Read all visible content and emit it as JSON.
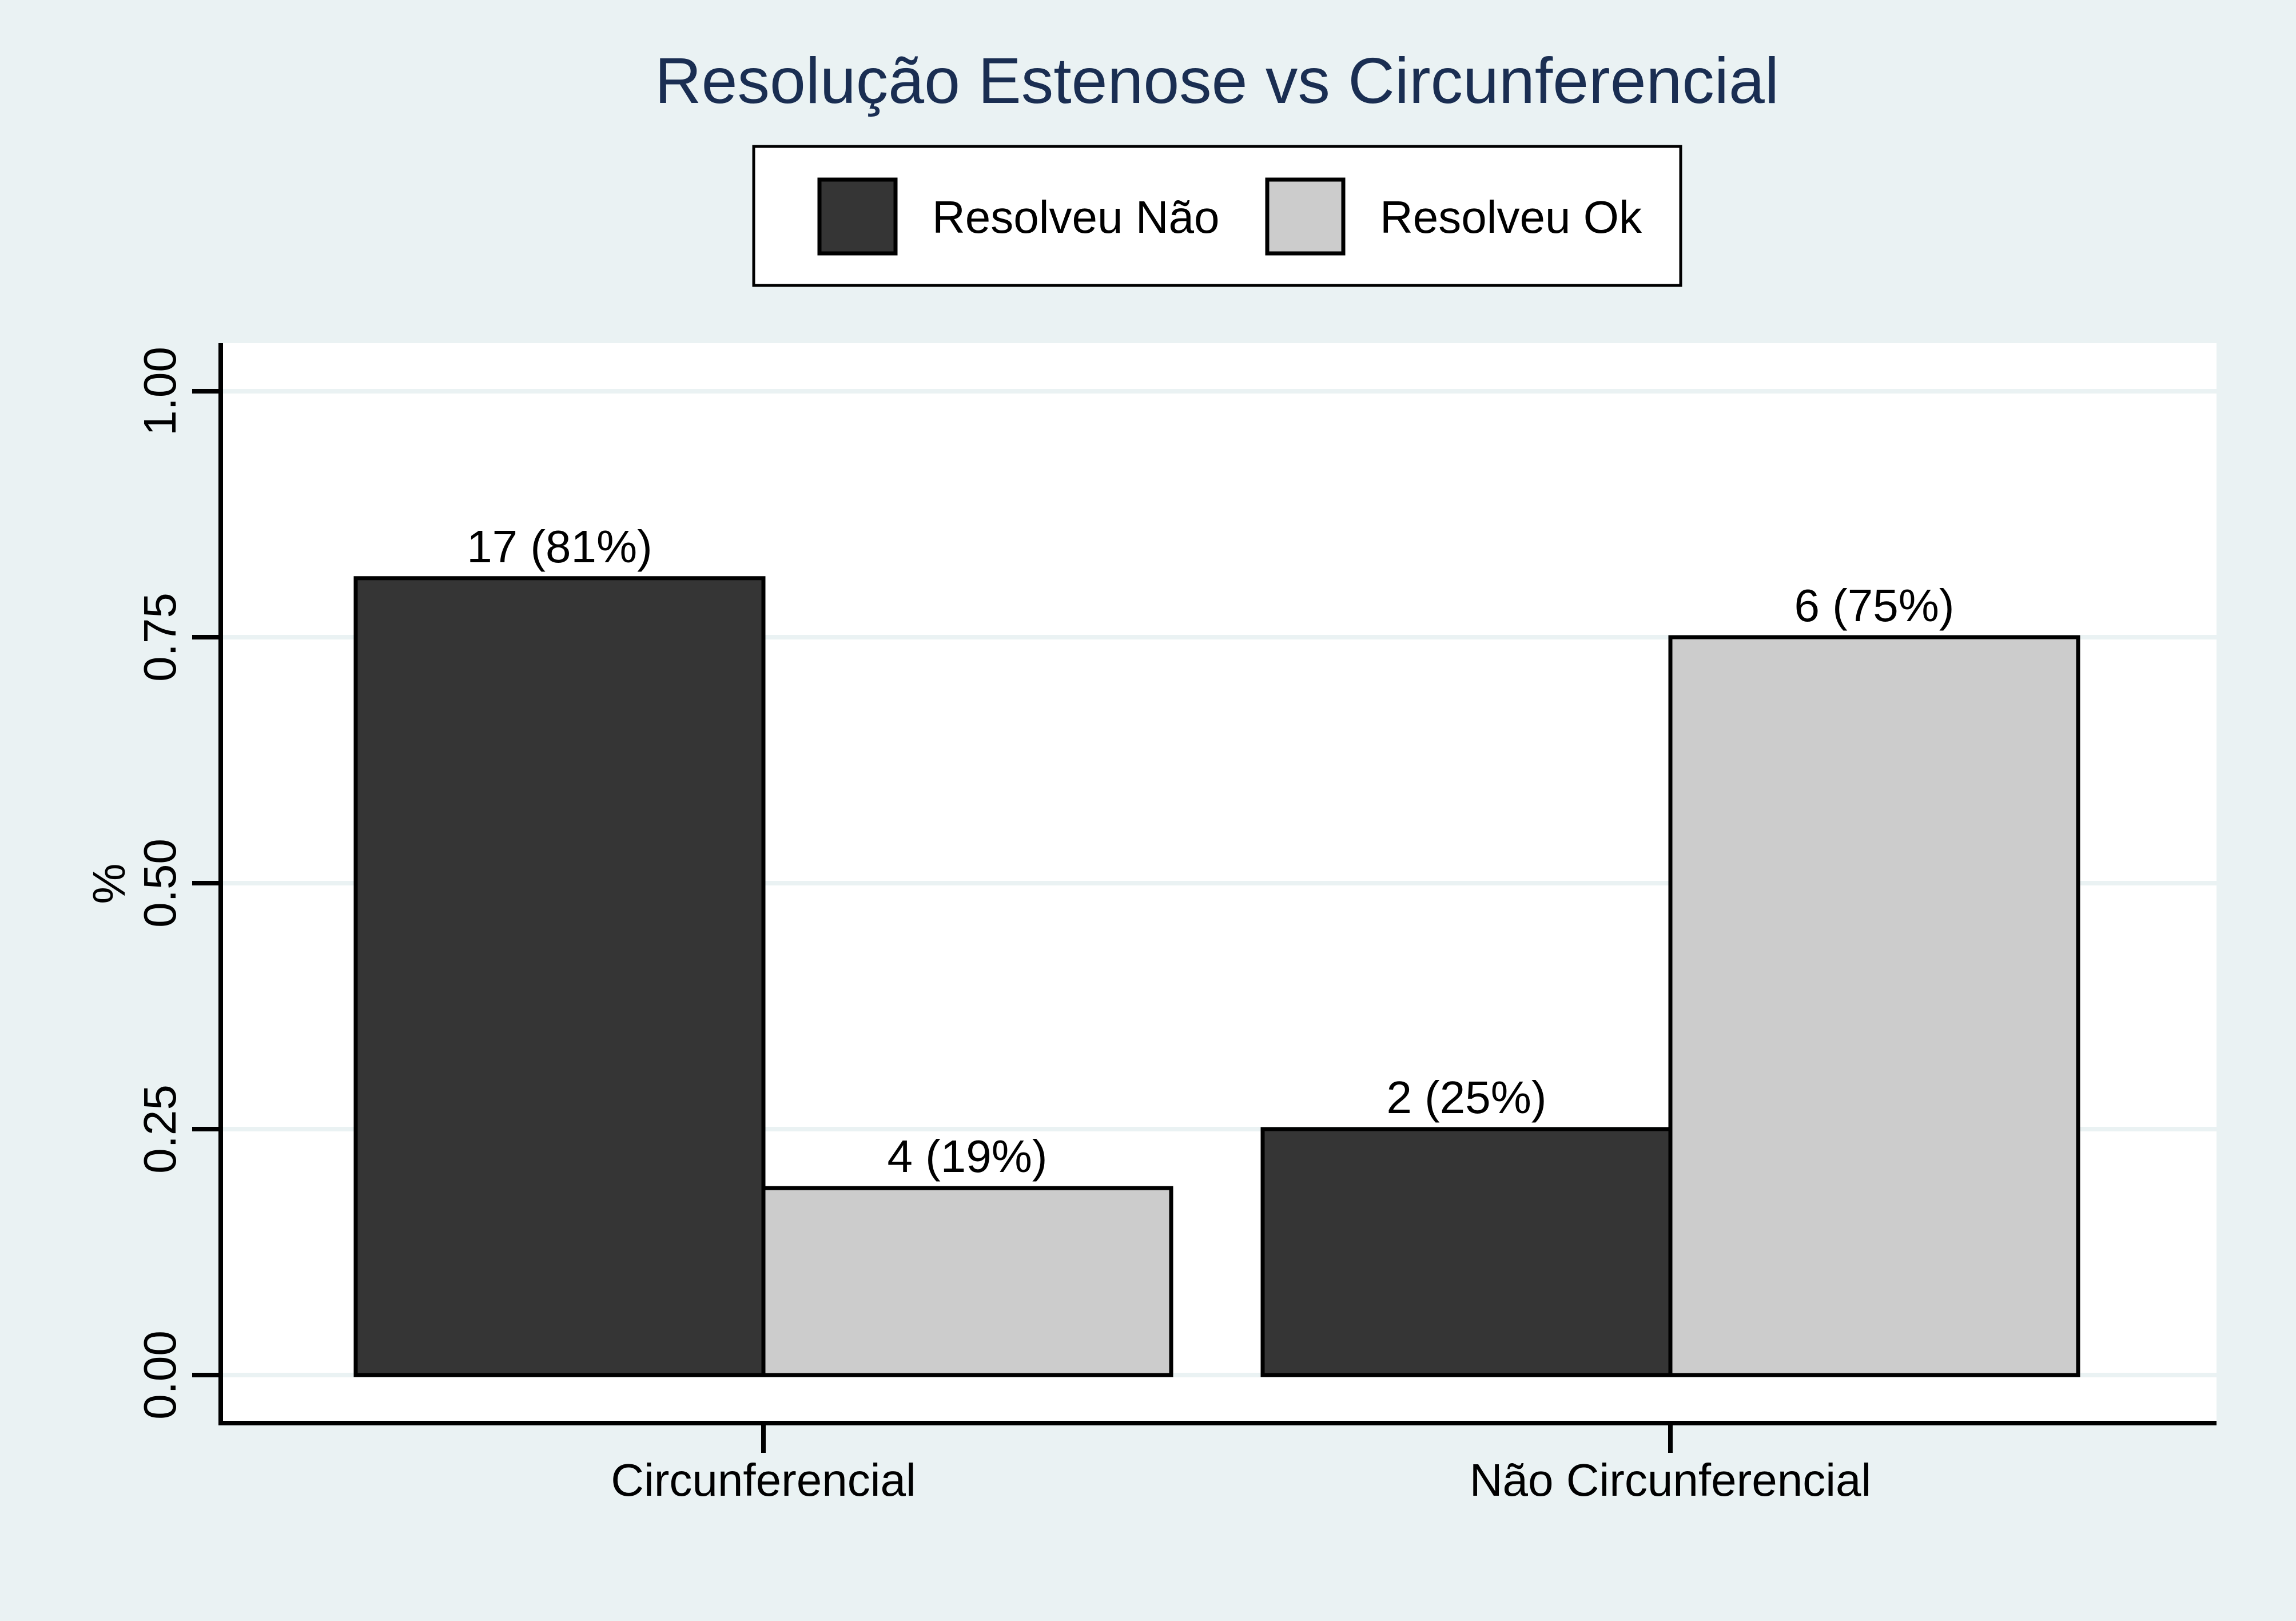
{
  "chart_data": {
    "type": "bar",
    "title": "Resolução Estenose vs Circunferencial",
    "ylabel": "%",
    "xlabel": "",
    "ylim": [
      0,
      1.05
    ],
    "yticks": [
      "0.00",
      "0.25",
      "0.50",
      "0.75",
      "1.00"
    ],
    "ytick_values": [
      0,
      0.25,
      0.5,
      0.75,
      1.0
    ],
    "categories": [
      "Circunferencial",
      "Não Circunferencial"
    ],
    "series": [
      {
        "name": "Resolveu Não",
        "color": "#353535",
        "values": [
          0.81,
          0.25
        ],
        "labels": [
          "17 (81%)",
          "2 (25%)"
        ]
      },
      {
        "name": "Resolveu Ok",
        "color": "#cccccc",
        "values": [
          0.19,
          0.75
        ],
        "labels": [
          "4 (19%)",
          "6 (75%)"
        ]
      }
    ],
    "legend_position": "top",
    "grid": true
  },
  "colors": {
    "page_background": "#eaf2f3",
    "plot_background": "#ffffff",
    "title": "#1a2e52"
  }
}
